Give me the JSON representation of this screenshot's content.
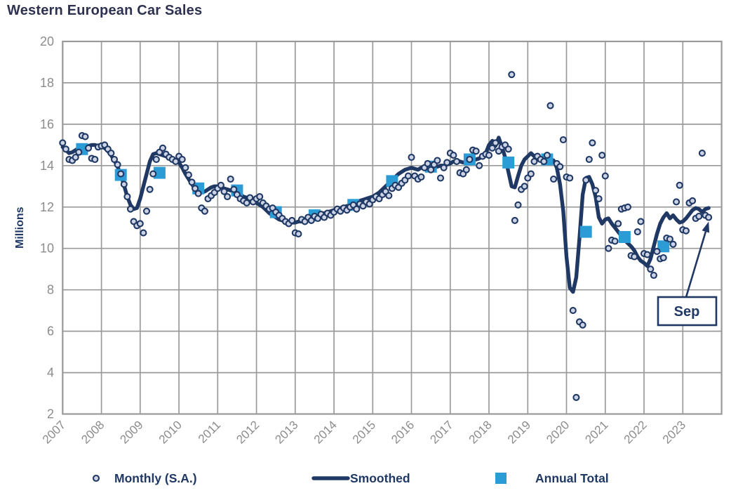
{
  "title": "Western European Car Sales",
  "colors": {
    "navy": "#1F3864",
    "accent_blue": "#2C9CD6",
    "circle_fill": "#CCD3E5",
    "grid": "#9A9A9A",
    "tick_text": "#8C8C8C",
    "title_text": "#2E3150",
    "background": "#FFFFFF"
  },
  "y_axis": {
    "label": "Millions",
    "min": 2,
    "max": 20,
    "tick_step": 2,
    "ticks": [
      20,
      18,
      16,
      14,
      12,
      10,
      8,
      6,
      4,
      2
    ]
  },
  "x_axis": {
    "min": 2007,
    "max": 2024,
    "ticks": [
      2007,
      2008,
      2009,
      2010,
      2011,
      2012,
      2013,
      2014,
      2015,
      2016,
      2017,
      2018,
      2019,
      2020,
      2021,
      2022,
      2023
    ]
  },
  "legend": {
    "items": [
      {
        "label": "Monthly (S.A.)",
        "marker": "circle"
      },
      {
        "label": "Smoothed",
        "marker": "line"
      },
      {
        "label": "Annual Total",
        "marker": "square"
      }
    ]
  },
  "annotation": {
    "label": "Sep",
    "target_year": 2023.667,
    "target_value": 11.5
  },
  "chart_data": {
    "type": "line",
    "title": "Western European Car Sales",
    "ylabel": "Millions",
    "ylim": [
      2,
      20
    ],
    "xlim": [
      2007,
      2024
    ],
    "grid": true,
    "legend_position": "bottom",
    "series": [
      {
        "name": "Monthly (S.A.)",
        "type": "scatter",
        "marker": "circle",
        "start_year": 2007,
        "start_month": 1,
        "frequency": "monthly",
        "values": [
          15.1,
          14.8,
          14.3,
          14.25,
          14.4,
          14.65,
          15.45,
          15.4,
          14.85,
          14.35,
          14.3,
          14.9,
          14.95,
          15.0,
          14.8,
          14.6,
          14.3,
          14.05,
          13.6,
          13.1,
          12.5,
          11.9,
          11.3,
          11.1,
          11.2,
          10.75,
          11.8,
          12.85,
          13.6,
          14.3,
          14.65,
          14.85,
          14.55,
          14.4,
          14.3,
          14.2,
          14.45,
          14.3,
          13.9,
          13.55,
          13.2,
          12.9,
          12.65,
          11.95,
          11.8,
          12.4,
          12.55,
          12.7,
          12.9,
          13.05,
          12.75,
          12.5,
          13.35,
          12.85,
          12.6,
          12.4,
          12.3,
          12.2,
          12.45,
          12.25,
          12.4,
          12.5,
          12.2,
          12.05,
          11.9,
          11.95,
          11.75,
          11.6,
          11.45,
          11.3,
          11.2,
          11.35,
          10.75,
          10.7,
          11.4,
          11.3,
          11.5,
          11.35,
          11.55,
          11.45,
          11.65,
          11.5,
          11.7,
          11.6,
          11.75,
          11.9,
          11.8,
          11.95,
          11.85,
          12.0,
          12.1,
          11.9,
          12.15,
          12.05,
          12.25,
          12.15,
          12.35,
          12.5,
          12.4,
          12.6,
          12.75,
          12.55,
          12.9,
          13.05,
          12.95,
          13.15,
          13.3,
          13.5,
          14.4,
          13.5,
          13.35,
          13.45,
          13.9,
          14.1,
          13.8,
          14.05,
          14.25,
          13.4,
          13.9,
          14.15,
          14.6,
          14.5,
          14.2,
          13.65,
          13.6,
          13.8,
          14.3,
          14.75,
          14.7,
          14.0,
          14.45,
          14.55,
          14.5,
          14.85,
          15.1,
          14.7,
          14.9,
          15.0,
          14.8,
          18.4,
          11.35,
          12.1,
          12.85,
          13.0,
          13.4,
          13.6,
          14.2,
          14.45,
          14.3,
          14.2,
          14.5,
          16.9,
          13.35,
          14.1,
          13.95,
          15.25,
          13.45,
          13.4,
          7.0,
          2.8,
          6.45,
          6.3,
          13.3,
          14.3,
          15.1,
          12.8,
          12.4,
          14.5,
          13.5,
          10.0,
          10.4,
          10.35,
          11.2,
          11.9,
          11.95,
          12.0,
          9.65,
          9.6,
          10.8,
          11.3,
          9.75,
          9.7,
          9.0,
          8.7,
          9.85,
          9.5,
          9.55,
          10.5,
          10.45,
          10.2,
          12.25,
          13.05,
          10.9,
          10.85,
          12.2,
          12.3,
          11.45,
          11.55,
          14.6,
          11.6,
          11.5
        ]
      },
      {
        "name": "Smoothed",
        "type": "line",
        "start_year": 2007,
        "start_month": 1,
        "frequency": "monthly",
        "values": [
          14.9,
          14.75,
          14.6,
          14.65,
          14.75,
          14.85,
          14.9,
          14.92,
          14.95,
          15.0,
          15.0,
          14.95,
          14.92,
          14.85,
          14.7,
          14.5,
          14.25,
          13.95,
          13.55,
          13.05,
          12.5,
          12.1,
          11.9,
          11.95,
          12.4,
          13.0,
          13.6,
          14.2,
          14.55,
          14.6,
          14.55,
          14.5,
          14.45,
          14.4,
          14.35,
          14.25,
          14.15,
          13.9,
          13.6,
          13.35,
          13.1,
          12.9,
          12.75,
          12.7,
          12.75,
          12.85,
          12.95,
          13.0,
          13.0,
          12.95,
          12.9,
          12.85,
          12.8,
          12.75,
          12.7,
          12.6,
          12.5,
          12.45,
          12.4,
          12.3,
          12.2,
          12.1,
          12.0,
          11.85,
          11.7,
          11.6,
          11.5,
          11.4,
          11.35,
          11.3,
          11.25,
          11.25,
          11.25,
          11.3,
          11.3,
          11.35,
          11.4,
          11.45,
          11.5,
          11.55,
          11.65,
          11.7,
          11.75,
          11.8,
          11.85,
          11.9,
          11.95,
          12.0,
          12.05,
          12.1,
          12.2,
          12.25,
          12.3,
          12.35,
          12.4,
          12.45,
          12.5,
          12.6,
          12.7,
          12.85,
          13.0,
          13.15,
          13.3,
          13.45,
          13.6,
          13.7,
          13.8,
          13.85,
          13.9,
          13.85,
          13.8,
          13.9,
          13.95,
          14.0,
          13.95,
          13.9,
          13.95,
          14.0,
          14.0,
          14.05,
          14.1,
          14.2,
          14.25,
          14.2,
          14.15,
          14.2,
          14.3,
          14.25,
          14.3,
          14.35,
          14.45,
          14.6,
          15.0,
          15.2,
          14.95,
          15.35,
          14.9,
          14.4,
          13.7,
          13.0,
          12.95,
          13.5,
          14.0,
          14.3,
          14.45,
          14.6,
          14.45,
          14.3,
          14.35,
          14.4,
          14.35,
          14.3,
          14.25,
          13.9,
          13.1,
          11.8,
          9.6,
          8.1,
          7.9,
          8.6,
          10.5,
          12.6,
          13.4,
          13.45,
          13.1,
          12.5,
          11.5,
          11.2,
          11.4,
          11.45,
          11.2,
          11.0,
          10.8,
          10.6,
          10.4,
          10.25,
          10.1,
          9.9,
          9.6,
          9.4,
          9.3,
          9.15,
          9.5,
          10.1,
          10.7,
          11.2,
          11.5,
          11.7,
          11.45,
          11.6,
          11.4,
          11.25,
          11.3,
          11.45,
          11.65,
          11.85,
          11.95,
          11.9,
          11.75,
          11.9,
          11.95
        ]
      },
      {
        "name": "Annual Total",
        "type": "scatter",
        "marker": "square",
        "years": [
          2007,
          2008,
          2009,
          2010,
          2011,
          2012,
          2013,
          2014,
          2015,
          2016,
          2017,
          2018,
          2019,
          2020,
          2021,
          2022
        ],
        "values": [
          14.8,
          13.55,
          13.65,
          12.9,
          12.8,
          11.75,
          11.6,
          12.1,
          13.25,
          13.95,
          14.3,
          14.15,
          14.3,
          10.8,
          10.55,
          10.1
        ]
      }
    ]
  }
}
